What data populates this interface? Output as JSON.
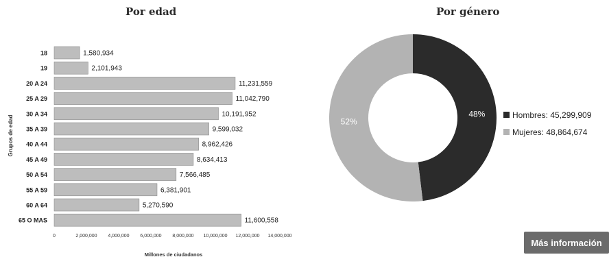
{
  "chart_data": [
    {
      "type": "bar",
      "orientation": "horizontal",
      "title": "Por edad",
      "ylabel": "Grupos de edad",
      "xlabel": "Millones de ciudadanos",
      "categories": [
        "18",
        "19",
        "20 A 24",
        "25 A 29",
        "30 A 34",
        "35 A 39",
        "40 A 44",
        "45 A 49",
        "50 A 54",
        "55 A 59",
        "60 A 64",
        "65 O MAS"
      ],
      "values": [
        1580934,
        2101943,
        11231559,
        11042790,
        10191952,
        9599032,
        8962426,
        8634413,
        7566485,
        6381901,
        5270590,
        11600558
      ],
      "value_labels": [
        "1,580,934",
        "2,101,943",
        "11,231,559",
        "11,042,790",
        "10,191,952",
        "9,599,032",
        "8,962,426",
        "8,634,413",
        "7,566,485",
        "6,381,901",
        "5,270,590",
        "11,600,558"
      ],
      "xlim": [
        0,
        14000000
      ],
      "xticks": [
        0,
        2000000,
        4000000,
        6000000,
        8000000,
        10000000,
        12000000,
        14000000
      ],
      "xtick_labels": [
        "0",
        "2,000,000",
        "4,000,000",
        "6,000,000",
        "8,000,000",
        "10,000,000",
        "12,000,000",
        "14,000,000"
      ],
      "grid": false,
      "colors": {
        "bar": "#bdbdbd",
        "bar_border": "#8a8a8a"
      }
    },
    {
      "type": "pie",
      "variant": "donut",
      "title": "Por género",
      "labels": [
        "Hombres",
        "Mujeres"
      ],
      "values": [
        45299909,
        48864674
      ],
      "percent_labels": [
        "48%",
        "52%"
      ],
      "legend_entries": [
        "Hombres: 45,299,909",
        "Mujeres: 48,864,674"
      ],
      "legend_position": "right",
      "colors": [
        "#2b2b2b",
        "#b3b3b3"
      ]
    }
  ],
  "button": {
    "label": "Más información"
  }
}
